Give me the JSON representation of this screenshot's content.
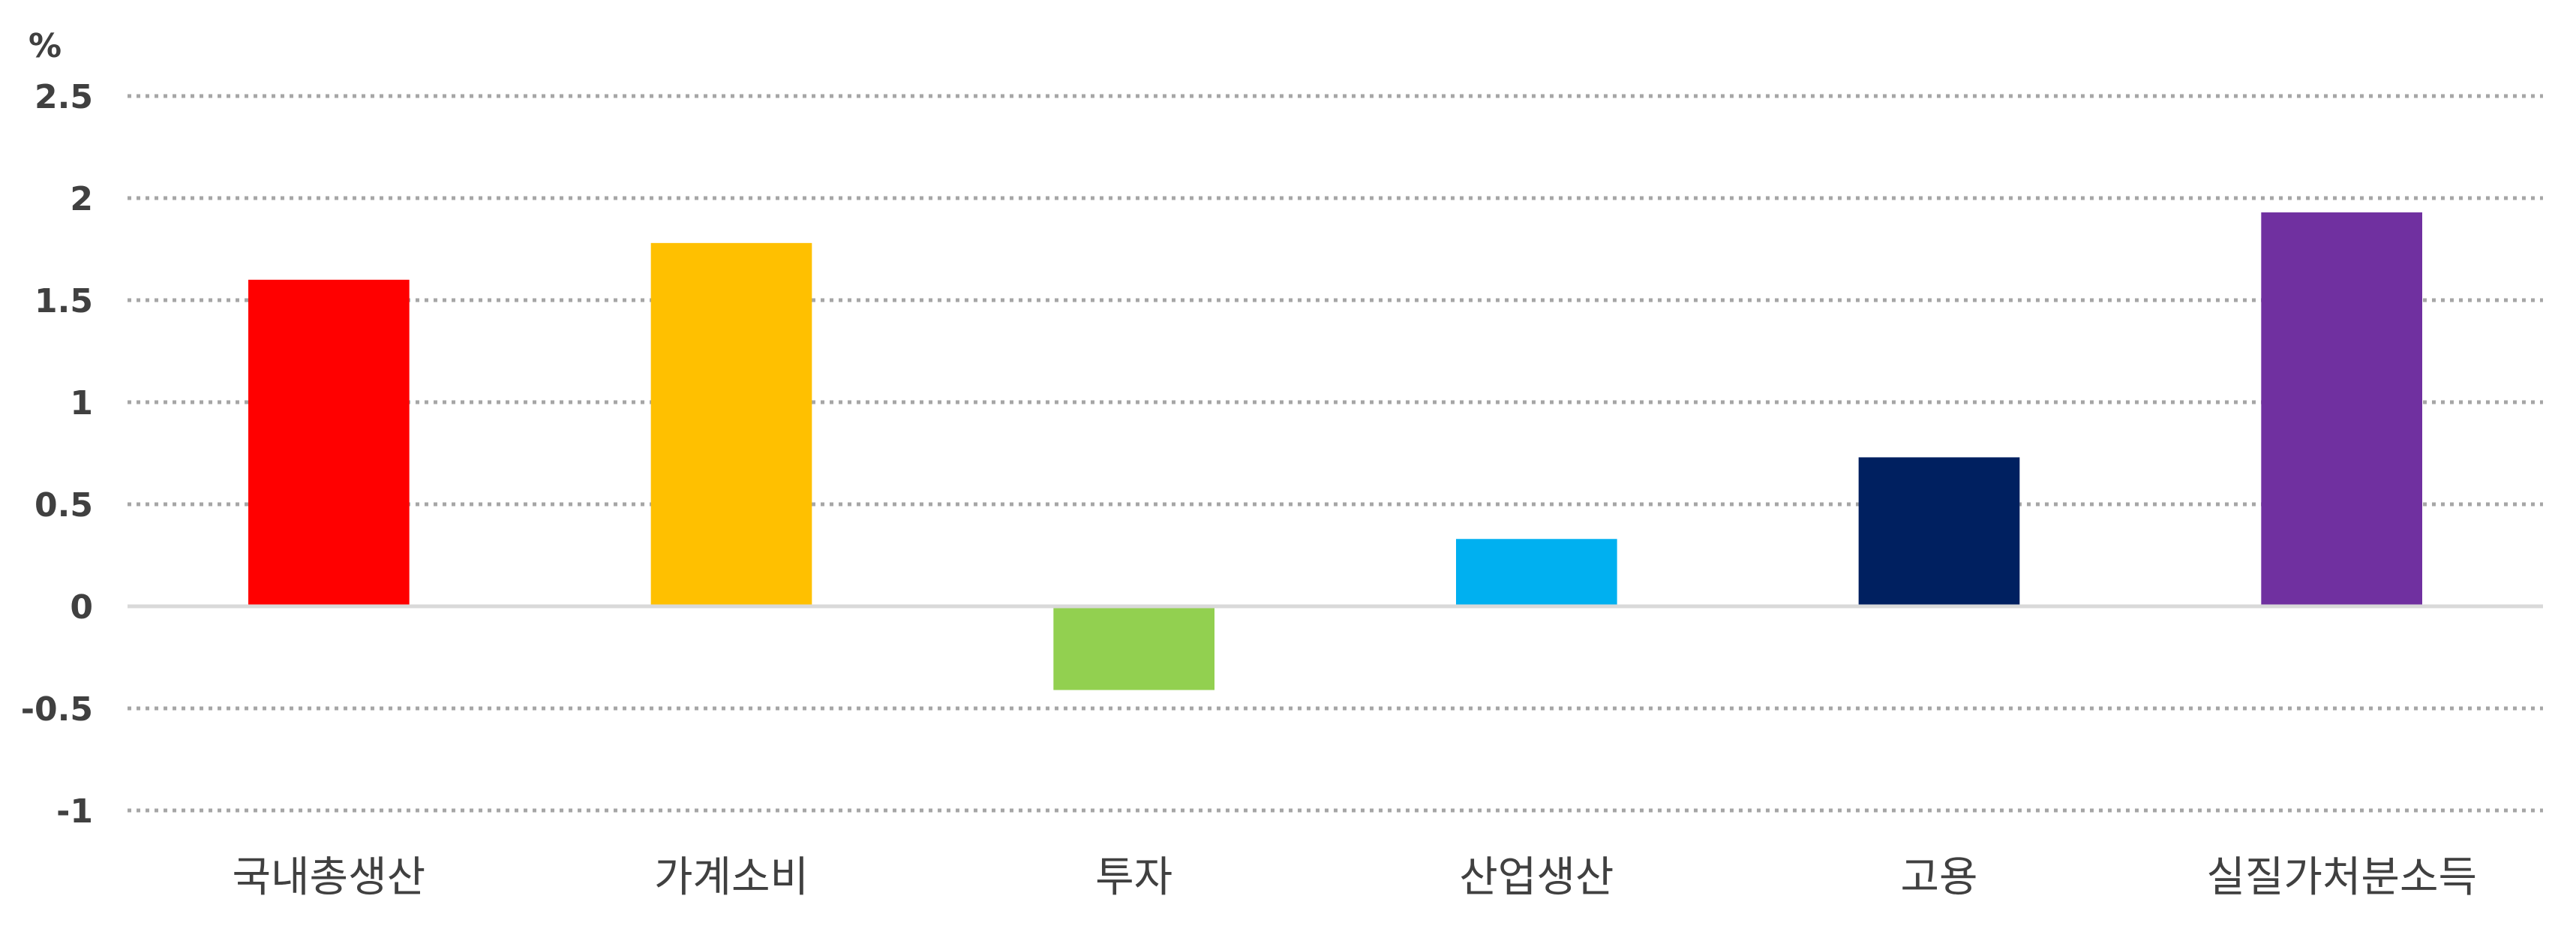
{
  "chart_data": {
    "type": "bar",
    "title": "",
    "xlabel": "",
    "ylabel": "%",
    "ylim": [
      -1,
      2.5
    ],
    "yticks": [
      2.5,
      2,
      1.5,
      1,
      0.5,
      0,
      -0.5,
      -1
    ],
    "ytick_labels": [
      "2.5",
      "2",
      "1.5",
      "1",
      "0.5",
      "0",
      "-0.5",
      "-1"
    ],
    "grid": true,
    "legend": "none",
    "categories": [
      "국내총생산",
      "가계소비",
      "투자",
      "산업생산",
      "고용",
      "실질가처분소득"
    ],
    "values": [
      1.6,
      1.78,
      -0.41,
      0.33,
      0.73,
      1.93
    ],
    "colors": [
      "#FF0000",
      "#FFC000",
      "#92D050",
      "#00B0F0",
      "#002060",
      "#7030A0"
    ]
  }
}
